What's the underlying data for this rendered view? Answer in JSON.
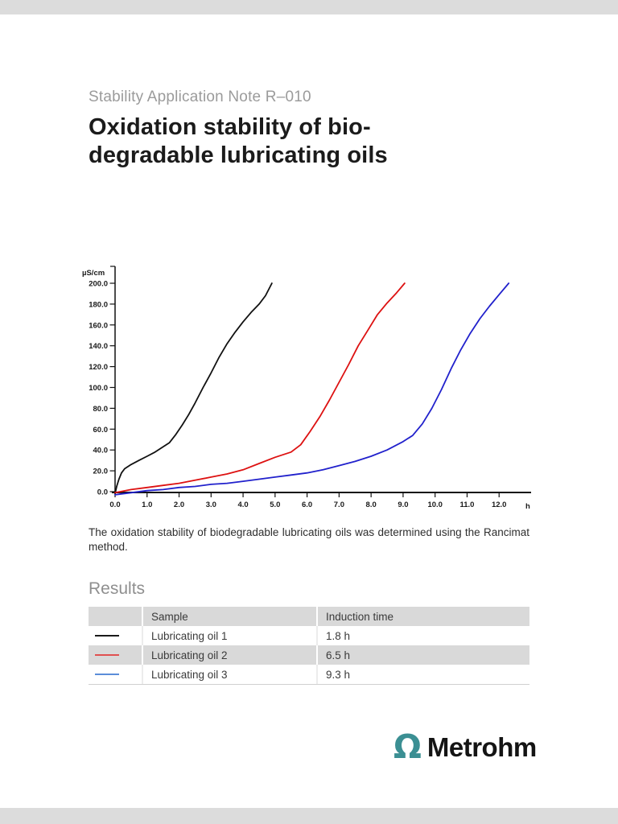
{
  "viewer": {
    "bar_color": "#dcdcdc",
    "page_background": "#ffffff"
  },
  "header": {
    "subtitle": "Stability Application Note R–010",
    "title_line1": "Oxidation stability of bio-",
    "title_line2": "degradable lubricating oils"
  },
  "caption": "The oxidation stability of biodegradable lubricating oils was determined using the Rancimat method.",
  "results": {
    "heading": "Results",
    "table": {
      "col_sample": "Sample",
      "col_induction": "Induction time",
      "rows": [
        {
          "swatch_color": "#1a1a1a",
          "sample": "Lubricating oil 1",
          "induction_time": "1.8 h"
        },
        {
          "swatch_color": "#e05050",
          "sample": "Lubricating oil 2",
          "induction_time": "6.5 h"
        },
        {
          "swatch_color": "#5b8dd9",
          "sample": "Lubricating oil 3",
          "induction_time": "9.3 h"
        }
      ]
    }
  },
  "logo": {
    "symbol": "Ω",
    "symbol_color": "#3b8f93",
    "text": "Metrohm",
    "text_color": "#141414"
  },
  "chart_data": {
    "type": "line",
    "title": "",
    "ylabel": "µS/cm",
    "xlabel": "h",
    "xlim": [
      0,
      13
    ],
    "ylim": [
      0,
      200
    ],
    "grid": false,
    "legend_position": "none",
    "x_ticks": [
      0,
      1,
      2,
      3,
      4,
      5,
      6,
      7,
      8,
      9,
      10,
      11,
      12
    ],
    "y_ticks": [
      0,
      20,
      40,
      60,
      80,
      100,
      120,
      140,
      160,
      180,
      200
    ],
    "axis_color": "#111111",
    "series": [
      {
        "name": "Lubricating oil 1",
        "color": "#111111",
        "points": [
          [
            0,
            -2
          ],
          [
            0.05,
            5
          ],
          [
            0.12,
            12
          ],
          [
            0.2,
            18
          ],
          [
            0.3,
            22
          ],
          [
            0.5,
            26
          ],
          [
            0.75,
            30
          ],
          [
            1.0,
            34
          ],
          [
            1.25,
            38
          ],
          [
            1.5,
            43
          ],
          [
            1.7,
            47
          ],
          [
            1.9,
            55
          ],
          [
            2.1,
            64
          ],
          [
            2.3,
            74
          ],
          [
            2.5,
            85
          ],
          [
            2.75,
            100
          ],
          [
            3.0,
            114
          ],
          [
            3.25,
            129
          ],
          [
            3.5,
            142
          ],
          [
            3.75,
            153
          ],
          [
            4.0,
            163
          ],
          [
            4.25,
            172
          ],
          [
            4.5,
            180
          ],
          [
            4.7,
            188
          ],
          [
            4.9,
            200
          ]
        ]
      },
      {
        "name": "Lubricating oil 2",
        "color": "#dd1111",
        "points": [
          [
            0,
            -1
          ],
          [
            0.5,
            2
          ],
          [
            1.0,
            4
          ],
          [
            1.5,
            6
          ],
          [
            2.0,
            8
          ],
          [
            2.5,
            11
          ],
          [
            3.0,
            14
          ],
          [
            3.5,
            17
          ],
          [
            4.0,
            21
          ],
          [
            4.5,
            27
          ],
          [
            5.0,
            33
          ],
          [
            5.5,
            38
          ],
          [
            5.8,
            45
          ],
          [
            6.1,
            58
          ],
          [
            6.4,
            72
          ],
          [
            6.7,
            88
          ],
          [
            7.0,
            105
          ],
          [
            7.3,
            122
          ],
          [
            7.6,
            140
          ],
          [
            7.9,
            155
          ],
          [
            8.2,
            170
          ],
          [
            8.5,
            181
          ],
          [
            8.8,
            191
          ],
          [
            9.05,
            200
          ]
        ]
      },
      {
        "name": "Lubricating oil 3",
        "color": "#2121cc",
        "points": [
          [
            0,
            -3
          ],
          [
            0.5,
            -1
          ],
          [
            1.0,
            1
          ],
          [
            1.5,
            2
          ],
          [
            2.0,
            4
          ],
          [
            2.5,
            5
          ],
          [
            3.0,
            7
          ],
          [
            3.5,
            8
          ],
          [
            4.0,
            10
          ],
          [
            4.5,
            12
          ],
          [
            5.0,
            14
          ],
          [
            5.5,
            16
          ],
          [
            6.0,
            18
          ],
          [
            6.5,
            21
          ],
          [
            7.0,
            25
          ],
          [
            7.5,
            29
          ],
          [
            8.0,
            34
          ],
          [
            8.5,
            40
          ],
          [
            9.0,
            48
          ],
          [
            9.3,
            54
          ],
          [
            9.6,
            65
          ],
          [
            9.9,
            80
          ],
          [
            10.2,
            98
          ],
          [
            10.5,
            118
          ],
          [
            10.8,
            136
          ],
          [
            11.1,
            152
          ],
          [
            11.4,
            166
          ],
          [
            11.7,
            178
          ],
          [
            12.0,
            189
          ],
          [
            12.3,
            200
          ]
        ]
      }
    ]
  }
}
